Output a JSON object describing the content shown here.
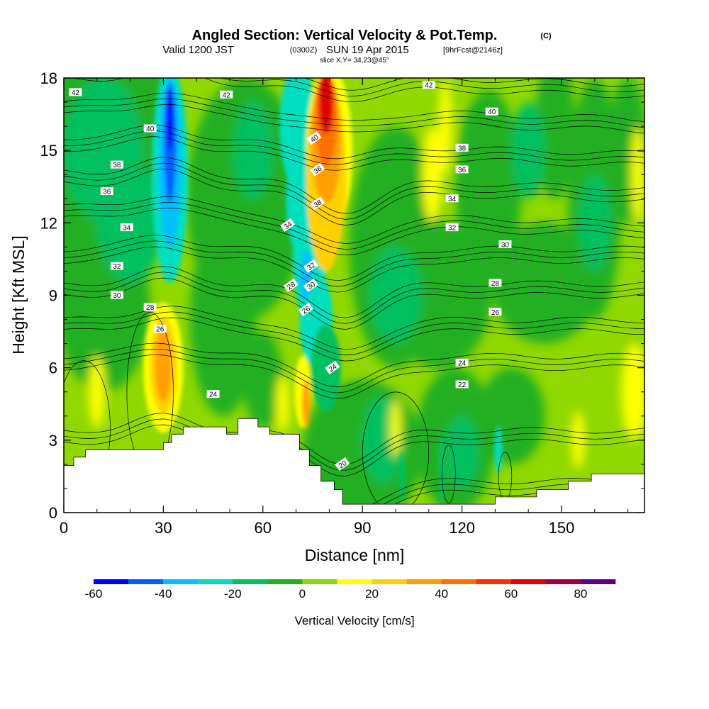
{
  "header": {
    "title": "Angled Section: Vertical Velocity & Pot.Temp.",
    "title_unit": "(C)",
    "valid_prefix": "Valid 1200 JST",
    "valid_utc": "(0300Z)",
    "valid_date": "SUN 19 Apr 2015",
    "forecast": "[9hrFcst@2146z]",
    "slice": "slice X,Y= 34,23@45°"
  },
  "chart_data": {
    "type": "heatmap",
    "xlabel": "Distance [nm]",
    "ylabel": "Height [Kft MSL]",
    "xlim": [
      0,
      175
    ],
    "ylim": [
      0,
      18
    ],
    "x_ticks": [
      0,
      30,
      60,
      90,
      120,
      150
    ],
    "y_ticks": [
      0,
      3,
      6,
      9,
      12,
      15,
      18
    ],
    "colorbar": {
      "label": "Vertical Velocity [cm/s]",
      "range": [
        -60,
        90
      ],
      "step": 10,
      "tick_labels": [
        -60,
        -40,
        -20,
        0,
        20,
        40,
        60,
        80
      ],
      "colors": [
        "#0000ff",
        "#0060ff",
        "#00c0ff",
        "#00e0c0",
        "#00c060",
        "#20b020",
        "#90d800",
        "#ffff00",
        "#ffd000",
        "#ffa000",
        "#ff7000",
        "#ff3000",
        "#e00000",
        "#a00040",
        "#600080"
      ]
    },
    "background_class_value": 0,
    "updraft_downdraft_features": [
      {
        "kind": "downdraft",
        "x": [
          28,
          36
        ],
        "y": [
          9,
          18
        ],
        "peak": -55
      },
      {
        "kind": "updraft",
        "x": [
          24,
          36
        ],
        "y": [
          4,
          8.5
        ],
        "peak": 35
      },
      {
        "kind": "updraft",
        "x": [
          71,
          86
        ],
        "y": [
          10,
          18
        ],
        "peak": 65
      },
      {
        "kind": "downdraft",
        "x": [
          64,
          84
        ],
        "y": [
          5,
          18
        ],
        "peak": -35
      },
      {
        "kind": "updraft",
        "x": [
          170,
          175
        ],
        "y": [
          3,
          7
        ],
        "peak": 15
      }
    ],
    "theta_contours_C": {
      "levels": [
        20,
        22,
        24,
        26,
        28,
        30,
        32,
        34,
        36,
        38,
        40,
        42
      ],
      "labels": [
        {
          "text": "42",
          "x": 3.5,
          "y": 17.4
        },
        {
          "text": "42",
          "x": 49,
          "y": 17.3
        },
        {
          "text": "42",
          "x": 110,
          "y": 17.7
        },
        {
          "text": "40",
          "x": 26,
          "y": 15.9
        },
        {
          "text": "40",
          "x": 129,
          "y": 16.6
        },
        {
          "text": "40",
          "x": 75.5,
          "y": 15.5
        },
        {
          "text": "38",
          "x": 16,
          "y": 14.4
        },
        {
          "text": "38",
          "x": 120,
          "y": 15.1
        },
        {
          "text": "38",
          "x": 76.5,
          "y": 12.8
        },
        {
          "text": "36",
          "x": 13,
          "y": 13.3
        },
        {
          "text": "36",
          "x": 120,
          "y": 14.2
        },
        {
          "text": "36",
          "x": 76.5,
          "y": 14.2
        },
        {
          "text": "34",
          "x": 19,
          "y": 11.8
        },
        {
          "text": "34",
          "x": 67.5,
          "y": 11.9
        },
        {
          "text": "34",
          "x": 117,
          "y": 13.0
        },
        {
          "text": "32",
          "x": 16,
          "y": 10.2
        },
        {
          "text": "32",
          "x": 74.5,
          "y": 10.2
        },
        {
          "text": "32",
          "x": 117,
          "y": 11.8
        },
        {
          "text": "30",
          "x": 16,
          "y": 9.0
        },
        {
          "text": "30",
          "x": 74.5,
          "y": 9.4
        },
        {
          "text": "30",
          "x": 133,
          "y": 11.1
        },
        {
          "text": "28",
          "x": 26,
          "y": 8.5
        },
        {
          "text": "28",
          "x": 68.5,
          "y": 9.4
        },
        {
          "text": "28",
          "x": 130,
          "y": 9.5
        },
        {
          "text": "26",
          "x": 29,
          "y": 7.6
        },
        {
          "text": "26",
          "x": 73,
          "y": 8.4
        },
        {
          "text": "26",
          "x": 130,
          "y": 8.3
        },
        {
          "text": "24",
          "x": 45,
          "y": 4.9
        },
        {
          "text": "24",
          "x": 81,
          "y": 6.0
        },
        {
          "text": "24",
          "x": 120,
          "y": 6.2
        },
        {
          "text": "22",
          "x": 120,
          "y": 5.3
        },
        {
          "text": "20",
          "x": 84,
          "y": 2.0
        }
      ]
    },
    "terrain_top_kft": [
      [
        0,
        1.95
      ],
      [
        3,
        1.95
      ],
      [
        3,
        2.3
      ],
      [
        6.5,
        2.3
      ],
      [
        6.5,
        2.6
      ],
      [
        30,
        2.6
      ],
      [
        30,
        2.9
      ],
      [
        32.5,
        2.9
      ],
      [
        32.5,
        3.25
      ],
      [
        36,
        3.25
      ],
      [
        36,
        3.55
      ],
      [
        49,
        3.55
      ],
      [
        49,
        3.25
      ],
      [
        52.5,
        3.25
      ],
      [
        52.5,
        3.9
      ],
      [
        58.5,
        3.9
      ],
      [
        58.5,
        3.55
      ],
      [
        62,
        3.55
      ],
      [
        62,
        3.25
      ],
      [
        71,
        3.25
      ],
      [
        71,
        2.6
      ],
      [
        74,
        2.6
      ],
      [
        74,
        1.95
      ],
      [
        77.5,
        1.95
      ],
      [
        77.5,
        1.3
      ],
      [
        81.5,
        1.3
      ],
      [
        81.5,
        0.95
      ],
      [
        84,
        0.95
      ],
      [
        84,
        0.35
      ],
      [
        130,
        0.35
      ],
      [
        130,
        0.65
      ],
      [
        142.5,
        0.65
      ],
      [
        142.5,
        0.95
      ],
      [
        152,
        0.95
      ],
      [
        152,
        1.3
      ],
      [
        159,
        1.3
      ],
      [
        159,
        1.6
      ],
      [
        175,
        1.6
      ]
    ]
  }
}
